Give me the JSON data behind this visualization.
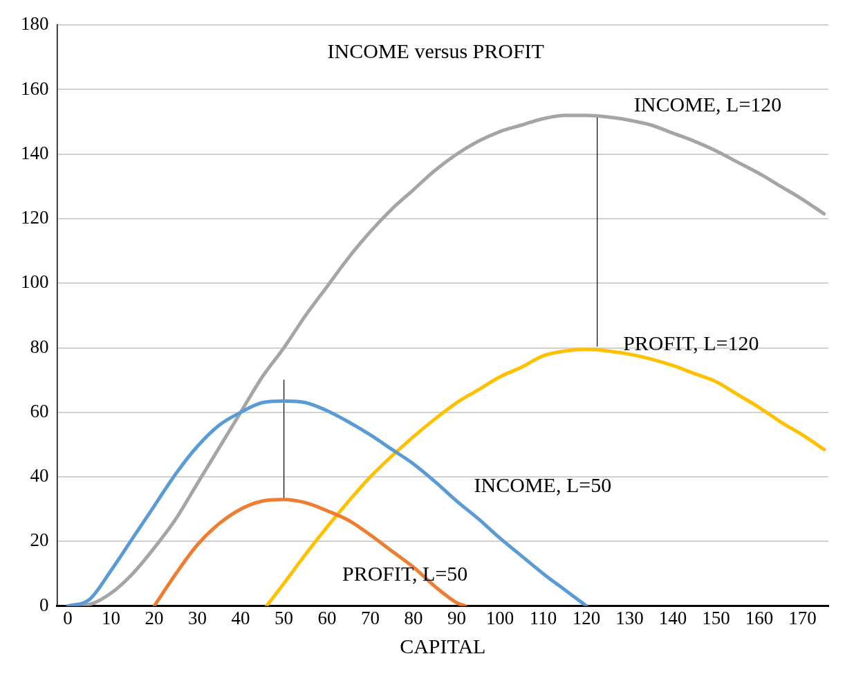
{
  "chart_data": {
    "type": "line",
    "title": "INCOME versus PROFIT",
    "xlabel": "CAPITAL",
    "xlim": [
      -2.5,
      176
    ],
    "xticks": [
      0,
      10,
      20,
      30,
      40,
      50,
      60,
      70,
      80,
      90,
      100,
      110,
      120,
      130,
      140,
      150,
      160,
      170
    ],
    "ylim": [
      0,
      180
    ],
    "yticks": [
      0,
      20,
      40,
      60,
      80,
      100,
      120,
      140,
      160,
      180
    ],
    "grid": "y",
    "legend": false,
    "marker": "none",
    "series": [
      {
        "name": "INCOME, L=50",
        "color": "#5b9bd5",
        "x": [
          0,
          5,
          10,
          15,
          20,
          25,
          30,
          35,
          40,
          45,
          50,
          55,
          60,
          65,
          70,
          75,
          80,
          85,
          90,
          95,
          100,
          105,
          110,
          115,
          120
        ],
        "values": [
          0,
          2,
          11,
          21,
          31,
          41,
          49.5,
          56,
          60,
          63,
          63.5,
          63,
          60.5,
          57,
          53,
          48.5,
          44,
          38.5,
          32.5,
          27,
          21,
          15.5,
          10,
          5,
          0
        ]
      },
      {
        "name": "PROFIT, L=50",
        "color": "#ed7d31",
        "x": [
          20,
          25,
          30,
          35,
          40,
          45,
          50,
          55,
          60,
          65,
          70,
          75,
          80,
          85,
          90,
          92
        ],
        "values": [
          0,
          10,
          19,
          25.5,
          30,
          32.5,
          33,
          32,
          29.5,
          26.5,
          22,
          17,
          12,
          6,
          1,
          0
        ]
      },
      {
        "name": "INCOME, L=120",
        "color": "#a5a5a5",
        "x": [
          0,
          5,
          10,
          15,
          20,
          25,
          30,
          35,
          40,
          45,
          50,
          55,
          60,
          65,
          70,
          75,
          80,
          85,
          90,
          95,
          100,
          105,
          110,
          115,
          120,
          125,
          130,
          135,
          140,
          145,
          150,
          155,
          160,
          165,
          170,
          175
        ],
        "values": [
          0,
          0.5,
          4,
          10,
          18,
          27,
          38,
          49,
          60,
          71,
          80,
          90,
          99,
          108,
          116,
          123,
          129,
          135,
          140,
          144,
          147,
          149,
          151,
          152,
          152,
          151.5,
          150.5,
          149,
          146.5,
          144,
          141,
          137.5,
          134,
          130,
          126,
          121.5
        ]
      },
      {
        "name": "PROFIT, L=120",
        "color": "#ffc000",
        "x": [
          46,
          50,
          55,
          60,
          65,
          70,
          75,
          80,
          85,
          90,
          95,
          100,
          105,
          110,
          115,
          120,
          125,
          130,
          135,
          140,
          145,
          150,
          155,
          160,
          165,
          170,
          175
        ],
        "values": [
          0,
          7,
          16,
          24.5,
          32.5,
          40,
          46.5,
          52.5,
          58,
          63,
          67,
          71,
          74,
          77.5,
          79,
          79.5,
          79,
          78,
          76.5,
          74.5,
          72,
          69.5,
          65.5,
          61.5,
          57,
          53,
          48.5
        ]
      },
      {
        "color": "#000000",
        "x": [
          50,
          50
        ],
        "values": [
          33,
          70
        ]
      },
      {
        "color": "#000000",
        "x": [
          122.5,
          122.5
        ],
        "values": [
          80.5,
          152
        ]
      }
    ]
  }
}
